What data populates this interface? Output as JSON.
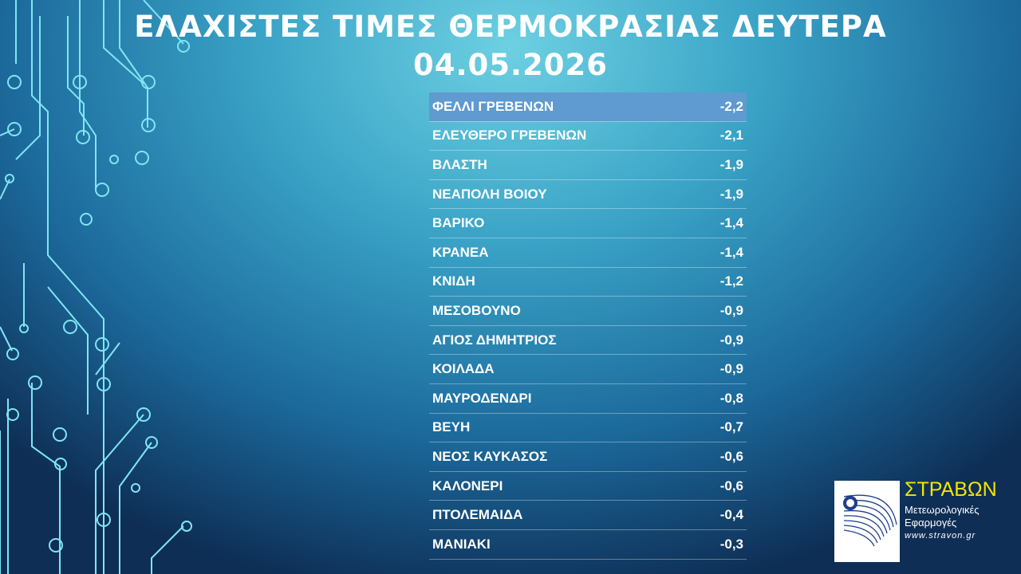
{
  "header": {
    "title_line1": "ΕΛΑΧΙΣΤΕΣ ΤΙΜΕΣ ΘΕΡΜΟΚΡΑΣΙΑΣ ΔΕΥΤΕΡΑ",
    "title_line2": "04.05.2026"
  },
  "table": {
    "rows": [
      [
        "ΦΕΛΛΙ ΓΡΕΒΕΝΩΝ",
        "-2,2"
      ],
      [
        "ΕΛΕΥΘΕΡΟ ΓΡΕΒΕΝΩΝ",
        "-2,1"
      ],
      [
        "ΒΛΑΣΤΗ",
        "-1,9"
      ],
      [
        "ΝΕΑΠΟΛΗ ΒΟΙΟΥ",
        "-1,9"
      ],
      [
        "ΒΑΡΙΚΟ",
        "-1,4"
      ],
      [
        "ΚΡΑΝΕΑ",
        "-1,4"
      ],
      [
        "ΚΝΙΔΗ",
        "-1,2"
      ],
      [
        "ΜΕΣΟΒΟΥΝΟ",
        "-0,9"
      ],
      [
        "ΑΓΙΟΣ ΔΗΜΗΤΡΙΟΣ",
        "-0,9"
      ],
      [
        "ΚΟΙΛΑΔΑ",
        "-0,9"
      ],
      [
        "ΜΑΥΡΟΔΕΝΔΡΙ",
        "-0,8"
      ],
      [
        "ΒΕΥΗ",
        "-0,7"
      ],
      [
        "ΝΕΟΣ ΚΑΥΚΑΣΟΣ",
        "-0,6"
      ],
      [
        "ΚΑΛΟΝΕΡΙ",
        "-0,6"
      ],
      [
        "ΠΤΟΛΕΜΑΙΔΑ",
        "-0,4"
      ],
      [
        "ΜΑΝΙΑΚΙ",
        "-0,3"
      ]
    ]
  },
  "logo": {
    "name": "ΣΤΡΑΒΩΝ",
    "line1": "Μετεωρολογικές",
    "line2": "Εφαρμογές",
    "url": "www.stravon.gr"
  }
}
